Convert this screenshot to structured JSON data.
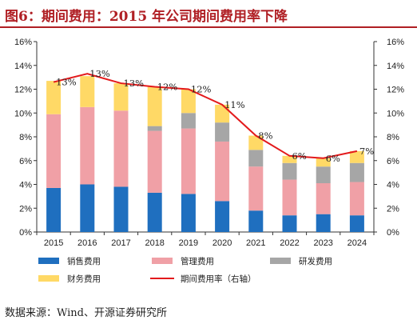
{
  "title": "图6：期间费用：2015 年公司期间费用率下降",
  "source": "数据来源：Wind、开源证券研究所",
  "colors": {
    "sales": "#1f6fbf",
    "admin": "#f0a0a6",
    "rnd": "#a6a6a6",
    "finance": "#ffd966",
    "line": "#e31a1c",
    "title": "#b01f24"
  },
  "chart_data": {
    "type": "bar",
    "stacked": true,
    "categories": [
      "2015",
      "2016",
      "2017",
      "2018",
      "2019",
      "2020",
      "2021",
      "2022",
      "2023",
      "2024"
    ],
    "series": [
      {
        "name": "销售费用",
        "values": [
          3.7,
          4.0,
          3.8,
          3.3,
          3.2,
          2.6,
          1.8,
          1.4,
          1.5,
          1.4
        ]
      },
      {
        "name": "管理费用",
        "values": [
          6.2,
          6.5,
          6.4,
          5.2,
          5.5,
          5.0,
          3.7,
          3.0,
          2.6,
          2.8
        ]
      },
      {
        "name": "研发费用",
        "values": [
          0,
          0,
          0,
          0.4,
          1.3,
          1.6,
          1.4,
          1.4,
          1.4,
          1.6
        ]
      },
      {
        "name": "财务费用",
        "values": [
          2.8,
          2.6,
          2.3,
          3.3,
          2.0,
          1.5,
          1.2,
          0.6,
          0.7,
          1.0
        ]
      }
    ],
    "line_series": {
      "name": "期间费用率（右轴）",
      "values": [
        12.6,
        13.3,
        12.5,
        12.2,
        12.0,
        10.7,
        8.1,
        6.4,
        6.2,
        6.8
      ],
      "labels": [
        "13%",
        "13%",
        "13%",
        "12%",
        "12%",
        "11%",
        "8%",
        "6%",
        "6%",
        "7%"
      ],
      "axis": "right"
    },
    "ylim": [
      0,
      16
    ],
    "yticks": [
      "0%",
      "2%",
      "4%",
      "6%",
      "8%",
      "10%",
      "12%",
      "14%",
      "16%"
    ],
    "y2ticks": [
      "0%",
      "2%",
      "4%",
      "6%",
      "8%",
      "10%",
      "12%",
      "14%",
      "16%"
    ],
    "legend": {
      "position": "bottom",
      "items": [
        {
          "label": "销售费用",
          "kind": "bar",
          "color_key": "sales"
        },
        {
          "label": "管理费用",
          "kind": "bar",
          "color_key": "admin"
        },
        {
          "label": "研发费用",
          "kind": "bar",
          "color_key": "rnd"
        },
        {
          "label": "财务费用",
          "kind": "bar",
          "color_key": "finance"
        },
        {
          "label": "期间费用率（右轴）",
          "kind": "line",
          "color_key": "line"
        }
      ]
    }
  }
}
